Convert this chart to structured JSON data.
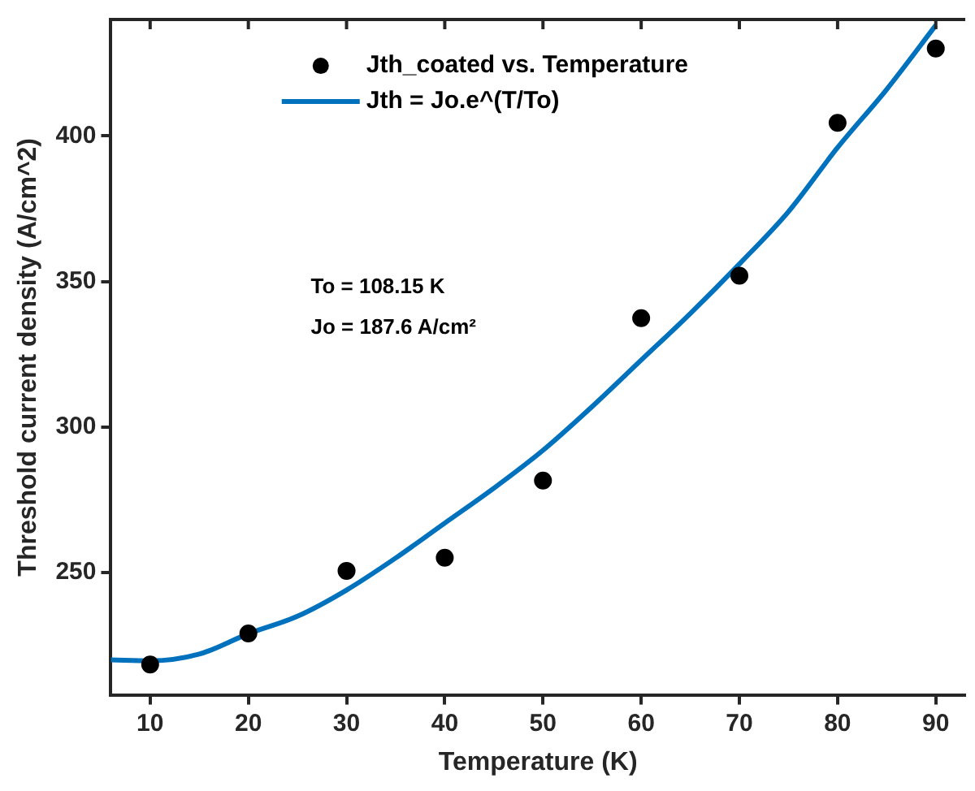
{
  "chart_data": {
    "type": "scatter",
    "xlabel": "Temperature (K)",
    "ylabel": "Threshold current density (A/cm^2)",
    "xlim": [
      6,
      93
    ],
    "xticks": [
      10,
      20,
      30,
      40,
      50,
      60,
      70,
      80,
      90
    ],
    "ylim": [
      208,
      440
    ],
    "yticks": [
      250,
      300,
      350,
      400
    ],
    "grid": false,
    "legend": "top",
    "marker": "circle",
    "annotations": [
      "To = 108.15 K",
      "Jo = 187.6 A/cm²"
    ],
    "series": [
      {
        "name": "Jth_coated vs. Temperature",
        "color": "#000000",
        "x": [
          10,
          20,
          30,
          40,
          50,
          60,
          70,
          80,
          90
        ],
        "values": [
          218.4,
          229.1,
          250.6,
          255.1,
          281.6,
          337.4,
          352,
          404.5,
          430
        ]
      },
      {
        "name": "Jth = Jo.e^(T/To)",
        "type": "line",
        "marker": "none",
        "color": "#0072bd",
        "x": [
          6,
          10,
          15,
          20,
          25,
          30,
          35,
          40,
          45,
          50,
          55,
          60,
          65,
          70,
          75,
          80,
          85,
          90
        ],
        "values": [
          220,
          219.7,
          222,
          229,
          235,
          244,
          255,
          267,
          279,
          292,
          307,
          323,
          339,
          356,
          374,
          396,
          416,
          438
        ]
      }
    ]
  }
}
